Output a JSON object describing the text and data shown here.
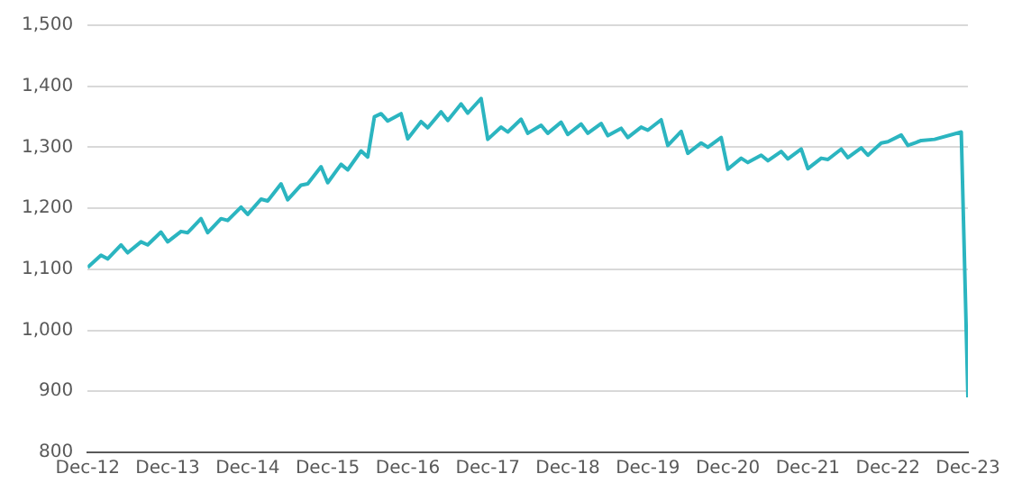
{
  "chart_data": {
    "type": "line",
    "grid": "y",
    "legend": false,
    "marker": "none",
    "line_style": "solid",
    "xlim": [
      "2012-12",
      "2023-12"
    ],
    "xticks": [
      {
        "value": "2012-12",
        "label": "Dec-12"
      },
      {
        "value": "2013-12",
        "label": "Dec-13"
      },
      {
        "value": "2014-12",
        "label": "Dec-14"
      },
      {
        "value": "2015-12",
        "label": "Dec-15"
      },
      {
        "value": "2016-12",
        "label": "Dec-16"
      },
      {
        "value": "2017-12",
        "label": "Dec-17"
      },
      {
        "value": "2018-12",
        "label": "Dec-18"
      },
      {
        "value": "2019-12",
        "label": "Dec-19"
      },
      {
        "value": "2020-12",
        "label": "Dec-20"
      },
      {
        "value": "2021-12",
        "label": "Dec-21"
      },
      {
        "value": "2022-12",
        "label": "Dec-22"
      },
      {
        "value": "2023-12",
        "label": "Dec-23"
      }
    ],
    "ylim": [
      800,
      1500
    ],
    "yticks": [
      {
        "value": 800,
        "label": "800"
      },
      {
        "value": 900,
        "label": "900"
      },
      {
        "value": 1000,
        "label": "1,000"
      },
      {
        "value": 1100,
        "label": "1,100"
      },
      {
        "value": 1200,
        "label": "1,200"
      },
      {
        "value": 1300,
        "label": "1,300"
      },
      {
        "value": 1400,
        "label": "1,400"
      },
      {
        "value": 1500,
        "label": "1,500"
      }
    ],
    "series": [
      {
        "color": "#2bb5c0",
        "x": [
          "2012-12",
          "2013-02",
          "2013-03",
          "2013-05",
          "2013-06",
          "2013-08",
          "2013-09",
          "2013-11",
          "2013-12",
          "2014-02",
          "2014-03",
          "2014-05",
          "2014-06",
          "2014-08",
          "2014-09",
          "2014-11",
          "2014-12",
          "2015-02",
          "2015-03",
          "2015-05",
          "2015-06",
          "2015-08",
          "2015-09",
          "2015-11",
          "2015-12",
          "2016-02",
          "2016-03",
          "2016-05",
          "2016-06",
          "2016-07",
          "2016-08",
          "2016-09",
          "2016-11",
          "2016-12",
          "2017-02",
          "2017-03",
          "2017-05",
          "2017-06",
          "2017-08",
          "2017-09",
          "2017-11",
          "2017-12",
          "2018-02",
          "2018-03",
          "2018-05",
          "2018-06",
          "2018-08",
          "2018-09",
          "2018-11",
          "2018-12",
          "2019-02",
          "2019-03",
          "2019-05",
          "2019-06",
          "2019-08",
          "2019-09",
          "2019-11",
          "2019-12",
          "2020-02",
          "2020-03",
          "2020-05",
          "2020-06",
          "2020-08",
          "2020-09",
          "2020-11",
          "2020-12",
          "2021-02",
          "2021-03",
          "2021-05",
          "2021-06",
          "2021-08",
          "2021-09",
          "2021-11",
          "2021-12",
          "2022-02",
          "2022-03",
          "2022-05",
          "2022-06",
          "2022-08",
          "2022-09",
          "2022-11",
          "2022-12",
          "2023-02",
          "2023-03",
          "2023-05",
          "2023-07",
          "2023-11",
          "2023-12"
        ],
        "values": [
          1103,
          1123,
          1117,
          1140,
          1127,
          1145,
          1140,
          1161,
          1145,
          1162,
          1160,
          1183,
          1160,
          1183,
          1180,
          1202,
          1190,
          1215,
          1212,
          1240,
          1214,
          1238,
          1240,
          1268,
          1242,
          1272,
          1263,
          1294,
          1284,
          1350,
          1355,
          1343,
          1355,
          1314,
          1342,
          1332,
          1358,
          1344,
          1371,
          1356,
          1380,
          1313,
          1333,
          1325,
          1346,
          1323,
          1336,
          1323,
          1341,
          1321,
          1338,
          1323,
          1339,
          1319,
          1331,
          1316,
          1333,
          1328,
          1345,
          1303,
          1326,
          1290,
          1307,
          1300,
          1316,
          1264,
          1282,
          1275,
          1287,
          1278,
          1293,
          1281,
          1297,
          1265,
          1282,
          1280,
          1297,
          1283,
          1299,
          1287,
          1307,
          1309,
          1320,
          1303,
          1311,
          1313,
          1325,
          890
        ]
      }
    ]
  }
}
